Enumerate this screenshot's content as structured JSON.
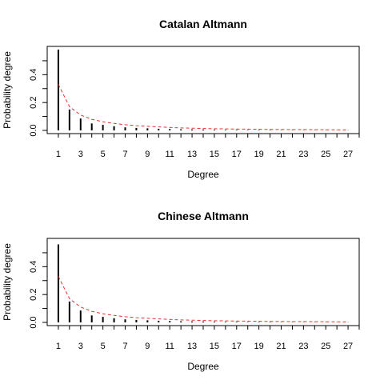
{
  "chart_data": [
    {
      "type": "bar",
      "title": "Catalan Altmann",
      "xlabel": "Degree",
      "ylabel": "Probability degree",
      "x_ticks": [
        1,
        3,
        5,
        7,
        9,
        11,
        13,
        15,
        17,
        19,
        21,
        23,
        25,
        27
      ],
      "y_ticks": [
        0.0,
        0.2,
        0.4
      ],
      "xlim": [
        0,
        28
      ],
      "ylim": [
        0,
        0.58
      ],
      "series": [
        {
          "kind": "observed-bars",
          "x": [
            1,
            2,
            3,
            4,
            5,
            6,
            7,
            8,
            9,
            10,
            11,
            12,
            13,
            14,
            15,
            16,
            17,
            18,
            19,
            20,
            21,
            22,
            23,
            24,
            25,
            26,
            27
          ],
          "values": [
            0.58,
            0.15,
            0.085,
            0.05,
            0.04,
            0.03,
            0.022,
            0.018,
            0.015,
            0.012,
            0.01,
            0.008,
            0.007,
            0.006,
            0.005,
            0.004,
            0.004,
            0.003,
            0.003,
            0.003,
            0.002,
            0.002,
            0.002,
            0.002,
            0.002,
            0.001,
            0.001
          ]
        },
        {
          "kind": "fitted-curve",
          "color": "#e8312f",
          "x": [
            1,
            2,
            3,
            4,
            5,
            6,
            7,
            8,
            9,
            10,
            11,
            12,
            13,
            14,
            15,
            16,
            17,
            18,
            19,
            20,
            21,
            22,
            23,
            24,
            25,
            26,
            27
          ],
          "values": [
            0.33,
            0.17,
            0.11,
            0.08,
            0.062,
            0.05,
            0.041,
            0.034,
            0.029,
            0.025,
            0.021,
            0.018,
            0.016,
            0.014,
            0.012,
            0.011,
            0.01,
            0.009,
            0.008,
            0.007,
            0.0065,
            0.006,
            0.0055,
            0.005,
            0.0045,
            0.004,
            0.0035
          ]
        }
      ]
    },
    {
      "type": "bar",
      "title": "Chinese Altmann",
      "xlabel": "Degree",
      "ylabel": "Probability degree",
      "x_ticks": [
        1,
        3,
        5,
        7,
        9,
        11,
        13,
        15,
        17,
        19,
        21,
        23,
        25,
        27
      ],
      "y_ticks": [
        0.0,
        0.2,
        0.4
      ],
      "xlim": [
        0,
        28
      ],
      "ylim": [
        0,
        0.58
      ],
      "series": [
        {
          "kind": "observed-bars",
          "x": [
            1,
            2,
            3,
            4,
            5,
            6,
            7,
            8,
            9,
            10,
            11,
            12,
            13,
            14,
            15,
            16,
            17,
            18,
            19,
            20,
            21,
            22,
            23,
            24,
            25,
            26,
            27
          ],
          "values": [
            0.56,
            0.15,
            0.085,
            0.05,
            0.04,
            0.03,
            0.022,
            0.018,
            0.015,
            0.012,
            0.01,
            0.008,
            0.007,
            0.006,
            0.005,
            0.004,
            0.004,
            0.003,
            0.003,
            0.003,
            0.002,
            0.002,
            0.002,
            0.002,
            0.002,
            0.001,
            0.001
          ]
        },
        {
          "kind": "fitted-curve",
          "color": "#e8312f",
          "x": [
            1,
            2,
            3,
            4,
            5,
            6,
            7,
            8,
            9,
            10,
            11,
            12,
            13,
            14,
            15,
            16,
            17,
            18,
            19,
            20,
            21,
            22,
            23,
            24,
            25,
            26,
            27
          ],
          "values": [
            0.33,
            0.17,
            0.11,
            0.08,
            0.062,
            0.05,
            0.041,
            0.034,
            0.029,
            0.025,
            0.021,
            0.018,
            0.016,
            0.014,
            0.012,
            0.011,
            0.01,
            0.009,
            0.008,
            0.007,
            0.0065,
            0.006,
            0.0055,
            0.005,
            0.0045,
            0.004,
            0.0035
          ]
        }
      ]
    }
  ]
}
